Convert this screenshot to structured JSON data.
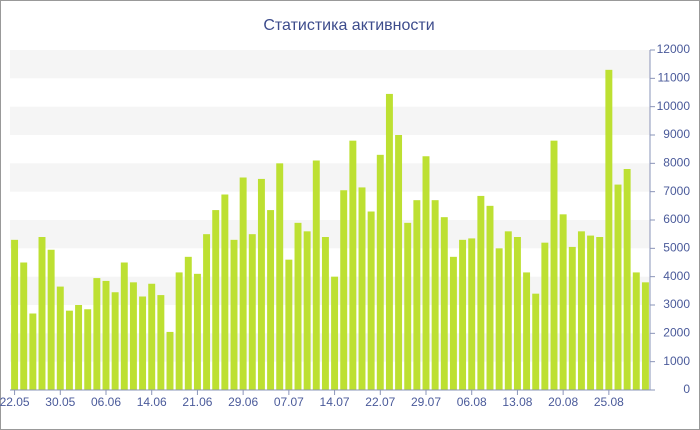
{
  "chart_data": {
    "type": "bar",
    "title": "Статистика активности",
    "categories": [
      "22.05",
      null,
      null,
      null,
      null,
      "30.05",
      null,
      null,
      null,
      null,
      "06.06",
      null,
      null,
      null,
      null,
      "14.06",
      null,
      null,
      null,
      null,
      "21.06",
      null,
      null,
      null,
      null,
      "29.06",
      null,
      null,
      null,
      null,
      "07.07",
      null,
      null,
      null,
      null,
      "14.07",
      null,
      null,
      null,
      null,
      "22.07",
      null,
      null,
      null,
      null,
      "29.07",
      null,
      null,
      null,
      null,
      "06.08",
      null,
      null,
      null,
      null,
      "13.08",
      null,
      null,
      null,
      null,
      "20.08",
      null,
      null,
      null,
      null,
      "25.08",
      null,
      null,
      null,
      null
    ],
    "values": [
      5300,
      4500,
      2700,
      5400,
      4950,
      3650,
      2800,
      3000,
      2850,
      3950,
      3850,
      3450,
      4500,
      3800,
      3300,
      3750,
      3350,
      2050,
      4150,
      4700,
      4100,
      5500,
      6350,
      6900,
      5300,
      7500,
      5500,
      7450,
      6350,
      8000,
      4600,
      5900,
      5600,
      8100,
      5400,
      4000,
      7050,
      8800,
      7150,
      6300,
      8300,
      10450,
      9000,
      5900,
      6700,
      8250,
      6700,
      6100,
      4700,
      5300,
      5350,
      6850,
      6500,
      5000,
      5600,
      5400,
      4150,
      3400,
      5200,
      8800,
      6200,
      5050,
      5600,
      5450,
      5400,
      11300,
      7250,
      7800,
      4150,
      3800
    ],
    "color": "#bde032",
    "ylim": [
      0,
      12000
    ],
    "yticks": [
      0,
      1000,
      2000,
      3000,
      4000,
      5000,
      6000,
      7000,
      8000,
      9000,
      10000,
      11000,
      12000
    ],
    "grid": true
  }
}
